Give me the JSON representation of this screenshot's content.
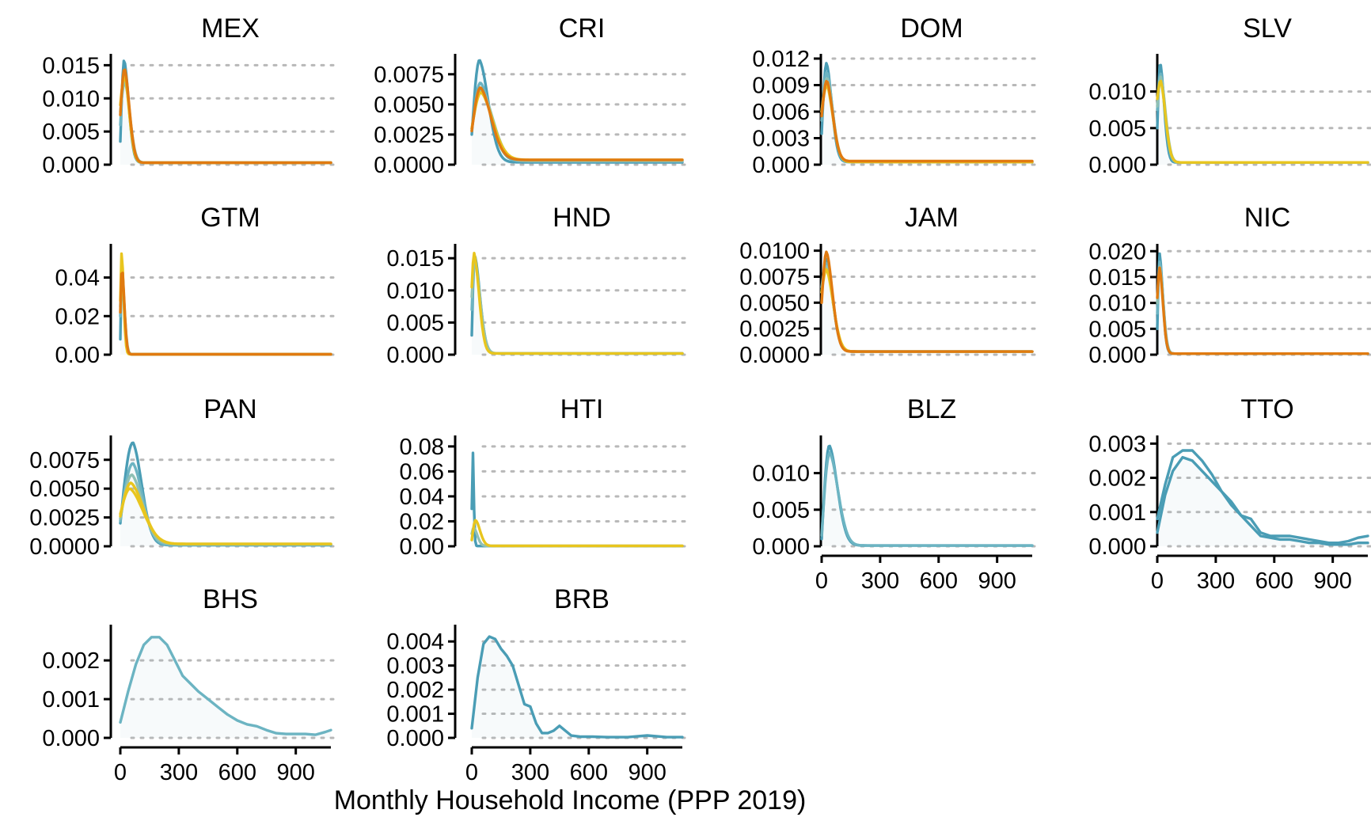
{
  "chart_data": {
    "type": "line",
    "xlabel": "Monthly Household Income (PPP 2019)",
    "xlim": [
      0,
      1080
    ],
    "x_ticks": [
      0,
      300,
      600,
      900
    ],
    "x_tick_labels": [
      "0",
      "300",
      "600",
      "900"
    ],
    "grid": "horizontal dotted",
    "colors": [
      "#4a9db5",
      "#6cb4c2",
      "#8fc0b4",
      "#e8c51e",
      "#e07a10"
    ],
    "panels": [
      {
        "title": "MEX",
        "ylim": [
          0,
          0.016
        ],
        "yticks": [
          0,
          0.005,
          0.01,
          0.015
        ],
        "ytick_labels": [
          "0.000",
          "0.005",
          "0.010",
          "0.015"
        ],
        "show_x_axis": false,
        "series": [
          {
            "color": "#4a9db5",
            "peak_x": 20,
            "peak_y": 0.0158,
            "width": 25,
            "start_y": 0.0035,
            "tail_y": 0.0003
          },
          {
            "color": "#6cb4c2",
            "peak_x": 22,
            "peak_y": 0.014,
            "width": 27,
            "start_y": 0.006,
            "tail_y": 0.0003
          },
          {
            "color": "#8fc0b4",
            "peak_x": 24,
            "peak_y": 0.0125,
            "width": 28,
            "start_y": 0.008,
            "tail_y": 0.0003
          },
          {
            "color": "#e8c51e",
            "peak_x": 22,
            "peak_y": 0.0135,
            "width": 26,
            "start_y": 0.009,
            "tail_y": 0.0003
          },
          {
            "color": "#e07a10",
            "peak_x": 22,
            "peak_y": 0.0145,
            "width": 27,
            "start_y": 0.0075,
            "tail_y": 0.0003
          }
        ]
      },
      {
        "title": "CRI",
        "ylim": [
          0,
          0.0088
        ],
        "yticks": [
          0,
          0.0025,
          0.005,
          0.0075
        ],
        "ytick_labels": [
          "0.0000",
          "0.0025",
          "0.0050",
          "0.0075"
        ],
        "show_x_axis": false,
        "series": [
          {
            "color": "#4a9db5",
            "peak_x": 40,
            "peak_y": 0.0087,
            "width": 50,
            "start_y": 0.0025,
            "tail_y": 0.0002
          },
          {
            "color": "#6cb4c2",
            "peak_x": 45,
            "peak_y": 0.0068,
            "width": 60,
            "start_y": 0.0028,
            "tail_y": 0.0003
          },
          {
            "color": "#8fc0b4",
            "peak_x": 50,
            "peak_y": 0.0062,
            "width": 65,
            "start_y": 0.003,
            "tail_y": 0.0003
          },
          {
            "color": "#e8c51e",
            "peak_x": 48,
            "peak_y": 0.006,
            "width": 65,
            "start_y": 0.003,
            "tail_y": 0.0004
          },
          {
            "color": "#e07a10",
            "peak_x": 45,
            "peak_y": 0.0064,
            "width": 60,
            "start_y": 0.0028,
            "tail_y": 0.0004
          }
        ]
      },
      {
        "title": "DOM",
        "ylim": [
          0,
          0.012
        ],
        "yticks": [
          0,
          0.003,
          0.006,
          0.009,
          0.012
        ],
        "ytick_labels": [
          "0.000",
          "0.003",
          "0.006",
          "0.009",
          "0.012"
        ],
        "show_x_axis": false,
        "series": [
          {
            "color": "#4a9db5",
            "peak_x": 25,
            "peak_y": 0.0115,
            "width": 30,
            "start_y": 0.0035,
            "tail_y": 0.0003
          },
          {
            "color": "#6cb4c2",
            "peak_x": 27,
            "peak_y": 0.0105,
            "width": 32,
            "start_y": 0.005,
            "tail_y": 0.0003
          },
          {
            "color": "#8fc0b4",
            "peak_x": 28,
            "peak_y": 0.0098,
            "width": 33,
            "start_y": 0.006,
            "tail_y": 0.0003
          },
          {
            "color": "#e8c51e",
            "peak_x": 27,
            "peak_y": 0.009,
            "width": 34,
            "start_y": 0.006,
            "tail_y": 0.0003
          },
          {
            "color": "#e07a10",
            "peak_x": 27,
            "peak_y": 0.0095,
            "width": 33,
            "start_y": 0.0055,
            "tail_y": 0.0004
          }
        ]
      },
      {
        "title": "SLV",
        "ylim": [
          0,
          0.0145
        ],
        "yticks": [
          0,
          0.005,
          0.01
        ],
        "ytick_labels": [
          "0.000",
          "0.005",
          "0.010"
        ],
        "show_x_axis": false,
        "series": [
          {
            "color": "#4a9db5",
            "peak_x": 15,
            "peak_y": 0.014,
            "width": 22,
            "start_y": 0.005,
            "tail_y": 0.0003
          },
          {
            "color": "#6cb4c2",
            "peak_x": 17,
            "peak_y": 0.0125,
            "width": 25,
            "start_y": 0.0075,
            "tail_y": 0.0003
          },
          {
            "color": "#8fc0b4",
            "peak_x": 18,
            "peak_y": 0.012,
            "width": 27,
            "start_y": 0.008,
            "tail_y": 0.0003
          },
          {
            "color": "#e8c51e",
            "peak_x": 17,
            "peak_y": 0.0115,
            "width": 27,
            "start_y": 0.009,
            "tail_y": 0.0003
          }
        ]
      },
      {
        "title": "GTM",
        "ylim": [
          0,
          0.055
        ],
        "yticks": [
          0,
          0.02,
          0.04
        ],
        "ytick_labels": [
          "0.00",
          "0.02",
          "0.04"
        ],
        "show_x_axis": false,
        "series": [
          {
            "color": "#4a9db5",
            "peak_x": 8,
            "peak_y": 0.047,
            "width": 12,
            "start_y": 0.008,
            "tail_y": 0.0002
          },
          {
            "color": "#6cb4c2",
            "peak_x": 9,
            "peak_y": 0.042,
            "width": 13,
            "start_y": 0.02,
            "tail_y": 0.0002
          },
          {
            "color": "#8fc0b4",
            "peak_x": 9,
            "peak_y": 0.04,
            "width": 14,
            "start_y": 0.025,
            "tail_y": 0.0002
          },
          {
            "color": "#e8c51e",
            "peak_x": 7,
            "peak_y": 0.053,
            "width": 11,
            "start_y": 0.028,
            "tail_y": 0.0002
          },
          {
            "color": "#e07a10",
            "peak_x": 9,
            "peak_y": 0.045,
            "width": 13,
            "start_y": 0.022,
            "tail_y": 0.0002
          }
        ]
      },
      {
        "title": "HND",
        "ylim": [
          0,
          0.0165
        ],
        "yticks": [
          0,
          0.005,
          0.01,
          0.015
        ],
        "ytick_labels": [
          "0.000",
          "0.005",
          "0.010",
          "0.015"
        ],
        "show_x_axis": false,
        "series": [
          {
            "color": "#4a9db5",
            "peak_x": 15,
            "peak_y": 0.0155,
            "width": 30,
            "start_y": 0.003,
            "tail_y": 0.0002
          },
          {
            "color": "#6cb4c2",
            "peak_x": 15,
            "peak_y": 0.015,
            "width": 30,
            "start_y": 0.007,
            "tail_y": 0.0002
          },
          {
            "color": "#8fc0b4",
            "peak_x": 15,
            "peak_y": 0.0145,
            "width": 31,
            "start_y": 0.009,
            "tail_y": 0.0002
          },
          {
            "color": "#e8c51e",
            "peak_x": 12,
            "peak_y": 0.0158,
            "width": 28,
            "start_y": 0.0105,
            "tail_y": 0.0002
          }
        ]
      },
      {
        "title": "JAM",
        "ylim": [
          0,
          0.0102
        ],
        "yticks": [
          0,
          0.0025,
          0.005,
          0.0075,
          0.01
        ],
        "ytick_labels": [
          "0.0000",
          "0.0025",
          "0.0050",
          "0.0075",
          "0.0100"
        ],
        "show_x_axis": false,
        "series": [
          {
            "color": "#4a9db5",
            "peak_x": 25,
            "peak_y": 0.0092,
            "width": 35,
            "start_y": 0.006,
            "tail_y": 0.0003
          },
          {
            "color": "#6cb4c2",
            "peak_x": 25,
            "peak_y": 0.0088,
            "width": 36,
            "start_y": 0.0065,
            "tail_y": 0.0003
          },
          {
            "color": "#8fc0b4",
            "peak_x": 25,
            "peak_y": 0.0085,
            "width": 37,
            "start_y": 0.006,
            "tail_y": 0.0003
          },
          {
            "color": "#e8c51e",
            "peak_x": 25,
            "peak_y": 0.0082,
            "width": 38,
            "start_y": 0.006,
            "tail_y": 0.0003
          },
          {
            "color": "#e07a10",
            "peak_x": 25,
            "peak_y": 0.0099,
            "width": 34,
            "start_y": 0.005,
            "tail_y": 0.0003
          }
        ]
      },
      {
        "title": "NIC",
        "ylim": [
          0,
          0.0205
        ],
        "yticks": [
          0,
          0.005,
          0.01,
          0.015,
          0.02
        ],
        "ytick_labels": [
          "0.000",
          "0.005",
          "0.010",
          "0.015",
          "0.020"
        ],
        "show_x_axis": false,
        "series": [
          {
            "color": "#4a9db5",
            "peak_x": 12,
            "peak_y": 0.0195,
            "width": 18,
            "start_y": 0.005,
            "tail_y": 0.0002
          },
          {
            "color": "#6cb4c2",
            "peak_x": 13,
            "peak_y": 0.018,
            "width": 19,
            "start_y": 0.008,
            "tail_y": 0.0002
          },
          {
            "color": "#8fc0b4",
            "peak_x": 13,
            "peak_y": 0.017,
            "width": 20,
            "start_y": 0.01,
            "tail_y": 0.0002
          },
          {
            "color": "#e07a10",
            "peak_x": 12,
            "peak_y": 0.0168,
            "width": 19,
            "start_y": 0.011,
            "tail_y": 0.0002
          }
        ]
      },
      {
        "title": "PAN",
        "ylim": [
          0,
          0.0092
        ],
        "yticks": [
          0,
          0.0025,
          0.005,
          0.0075
        ],
        "ytick_labels": [
          "0.0000",
          "0.0025",
          "0.0050",
          "0.0075"
        ],
        "show_x_axis": false,
        "series": [
          {
            "color": "#4a9db5",
            "peak_x": 65,
            "peak_y": 0.009,
            "width": 50,
            "start_y": 0.002,
            "tail_y": 0.0001
          },
          {
            "color": "#6cb4c2",
            "peak_x": 65,
            "peak_y": 0.0072,
            "width": 55,
            "start_y": 0.0022,
            "tail_y": 0.0001
          },
          {
            "color": "#8fc0b4",
            "peak_x": 60,
            "peak_y": 0.0062,
            "width": 60,
            "start_y": 0.0024,
            "tail_y": 0.0002
          },
          {
            "color": "#e8c51e",
            "peak_x": 55,
            "peak_y": 0.0055,
            "width": 70,
            "start_y": 0.0026,
            "tail_y": 0.0002
          },
          {
            "color": "#e8c51e",
            "peak_x": 50,
            "peak_y": 0.005,
            "width": 75,
            "start_y": 0.0028,
            "tail_y": 0.0002
          }
        ]
      },
      {
        "title": "HTI",
        "ylim": [
          0,
          0.085
        ],
        "yticks": [
          0,
          0.02,
          0.04,
          0.06,
          0.08
        ],
        "ytick_labels": [
          "0.00",
          "0.02",
          "0.04",
          "0.06",
          "0.08"
        ],
        "show_x_axis": false,
        "series": [
          {
            "color": "#4a9db5",
            "peak_x": 4,
            "peak_y": 0.083,
            "width": 6,
            "start_y": 0.03,
            "tail_y": 0.0002
          },
          {
            "color": "#8fc0b4",
            "peak_x": 10,
            "peak_y": 0.015,
            "width": 20,
            "start_y": 0.01,
            "tail_y": 0.0003
          },
          {
            "color": "#e8c51e",
            "peak_x": 20,
            "peak_y": 0.021,
            "width": 25,
            "start_y": 0.005,
            "tail_y": 0.0003
          }
        ]
      },
      {
        "title": "BLZ",
        "ylim": [
          0,
          0.0145
        ],
        "yticks": [
          0,
          0.005,
          0.01
        ],
        "ytick_labels": [
          "0.000",
          "0.005",
          "0.010"
        ],
        "show_x_axis": true,
        "series": [
          {
            "color": "#4a9db5",
            "peak_x": 40,
            "peak_y": 0.0138,
            "width": 45,
            "start_y": 0.001,
            "tail_y": 0.0001
          },
          {
            "color": "#6cb4c2",
            "peak_x": 42,
            "peak_y": 0.0128,
            "width": 47,
            "start_y": 0.0015,
            "tail_y": 0.0001
          }
        ]
      },
      {
        "title": "TTO",
        "ylim": [
          0,
          0.0031
        ],
        "yticks": [
          0,
          0.001,
          0.002,
          0.003
        ],
        "ytick_labels": [
          "0.000",
          "0.001",
          "0.002",
          "0.003"
        ],
        "show_x_axis": true,
        "series": [
          {
            "color": "#4a9db5",
            "x": [
              0,
              40,
              80,
              130,
              180,
              230,
              280,
              330,
              380,
              430,
              480,
              530,
              580,
              630,
              680,
              730,
              780,
              830,
              880,
              930,
              980,
              1030,
              1080
            ],
            "y": [
              0.0004,
              0.0015,
              0.0022,
              0.0026,
              0.0025,
              0.0022,
              0.0019,
              0.0016,
              0.0012,
              0.0009,
              0.0008,
              0.0004,
              0.0003,
              0.0003,
              0.0003,
              0.00025,
              0.0002,
              0.00015,
              0.0001,
              0.0001,
              0.00015,
              0.00025,
              0.0003
            ]
          },
          {
            "color": "#4a9db5",
            "x": [
              0,
              40,
              80,
              130,
              180,
              230,
              280,
              330,
              380,
              430,
              480,
              530,
              580,
              630,
              680,
              730,
              780,
              830,
              880,
              930,
              980,
              1030,
              1080
            ],
            "y": [
              0.0008,
              0.0018,
              0.0026,
              0.0028,
              0.0028,
              0.0025,
              0.0021,
              0.0016,
              0.0013,
              0.0009,
              0.0006,
              0.0003,
              0.00025,
              0.0002,
              0.0002,
              0.00015,
              0.0001,
              0.0001,
              5e-05,
              5e-05,
              5e-05,
              0.0001,
              0.0001
            ]
          }
        ]
      },
      {
        "title": "BHS",
        "ylim": [
          0,
          0.0028
        ],
        "yticks": [
          0,
          0.001,
          0.002
        ],
        "ytick_labels": [
          "0.000",
          "0.001",
          "0.002"
        ],
        "show_x_axis": true,
        "series": [
          {
            "color": "#6cb4c2",
            "x": [
              0,
              40,
              80,
              120,
              160,
              200,
              240,
              280,
              320,
              360,
              400,
              450,
              500,
              550,
              600,
              650,
              700,
              750,
              800,
              850,
              900,
              950,
              1000,
              1050,
              1080
            ],
            "y": [
              0.0004,
              0.0012,
              0.0019,
              0.0024,
              0.0026,
              0.0026,
              0.0024,
              0.002,
              0.0016,
              0.0014,
              0.0012,
              0.001,
              0.0008,
              0.0006,
              0.00045,
              0.00035,
              0.0003,
              0.0002,
              0.00012,
              0.0001,
              0.0001,
              0.0001,
              8e-05,
              0.00015,
              0.0002
            ]
          }
        ]
      },
      {
        "title": "BRB",
        "ylim": [
          0,
          0.0045
        ],
        "yticks": [
          0,
          0.001,
          0.002,
          0.003,
          0.004
        ],
        "ytick_labels": [
          "0.000",
          "0.001",
          "0.002",
          "0.003",
          "0.004"
        ],
        "show_x_axis": true,
        "series": [
          {
            "color": "#4a9db5",
            "x": [
              0,
              30,
              60,
              90,
              120,
              150,
              180,
              210,
              240,
              270,
              300,
              330,
              360,
              390,
              420,
              450,
              480,
              510,
              560,
              620,
              700,
              800,
              900,
              1000,
              1080
            ],
            "y": [
              0.0004,
              0.0025,
              0.0039,
              0.0042,
              0.0041,
              0.0037,
              0.0034,
              0.003,
              0.0022,
              0.0014,
              0.0013,
              0.0006,
              0.0002,
              0.0002,
              0.0003,
              0.0005,
              0.0003,
              0.0001,
              5e-05,
              5e-05,
              3e-05,
              3e-05,
              0.0001,
              3e-05,
              3e-05
            ]
          }
        ]
      }
    ]
  }
}
